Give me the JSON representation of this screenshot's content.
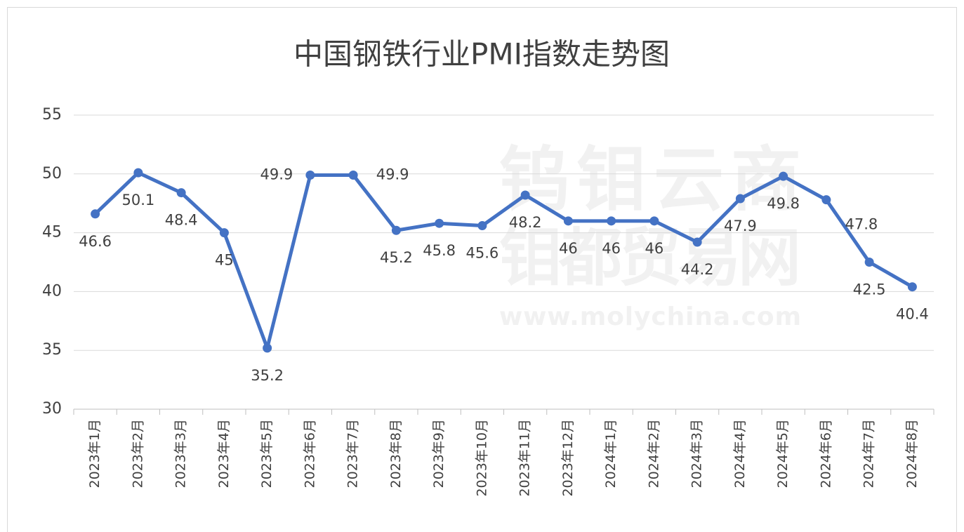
{
  "chart_data": {
    "type": "line",
    "title": "中国钢铁行业PMI指数走势图",
    "watermark": [
      "钨钼云商",
      "钼都贸易网",
      "www.molychina.com"
    ],
    "categories": [
      "2023年1月",
      "2023年2月",
      "2023年3月",
      "2023年4月",
      "2023年5月",
      "2023年6月",
      "2023年7月",
      "2023年8月",
      "2023年9月",
      "2023年10月",
      "2023年11月",
      "2023年12月",
      "2024年1月",
      "2024年2月",
      "2024年3月",
      "2024年4月",
      "2024年5月",
      "2024年6月",
      "2024年7月",
      "2024年8月"
    ],
    "series": [
      {
        "name": "PMI",
        "color": "#4472c4",
        "values": [
          46.6,
          50.1,
          48.4,
          45,
          35.2,
          49.9,
          49.9,
          45.2,
          45.8,
          45.6,
          48.2,
          46,
          46,
          46,
          44.2,
          47.9,
          49.8,
          47.8,
          42.5,
          40.4
        ]
      }
    ],
    "ylim": [
      30,
      55
    ],
    "yticks": [
      30,
      35,
      40,
      45,
      50,
      55
    ],
    "grid": true
  }
}
